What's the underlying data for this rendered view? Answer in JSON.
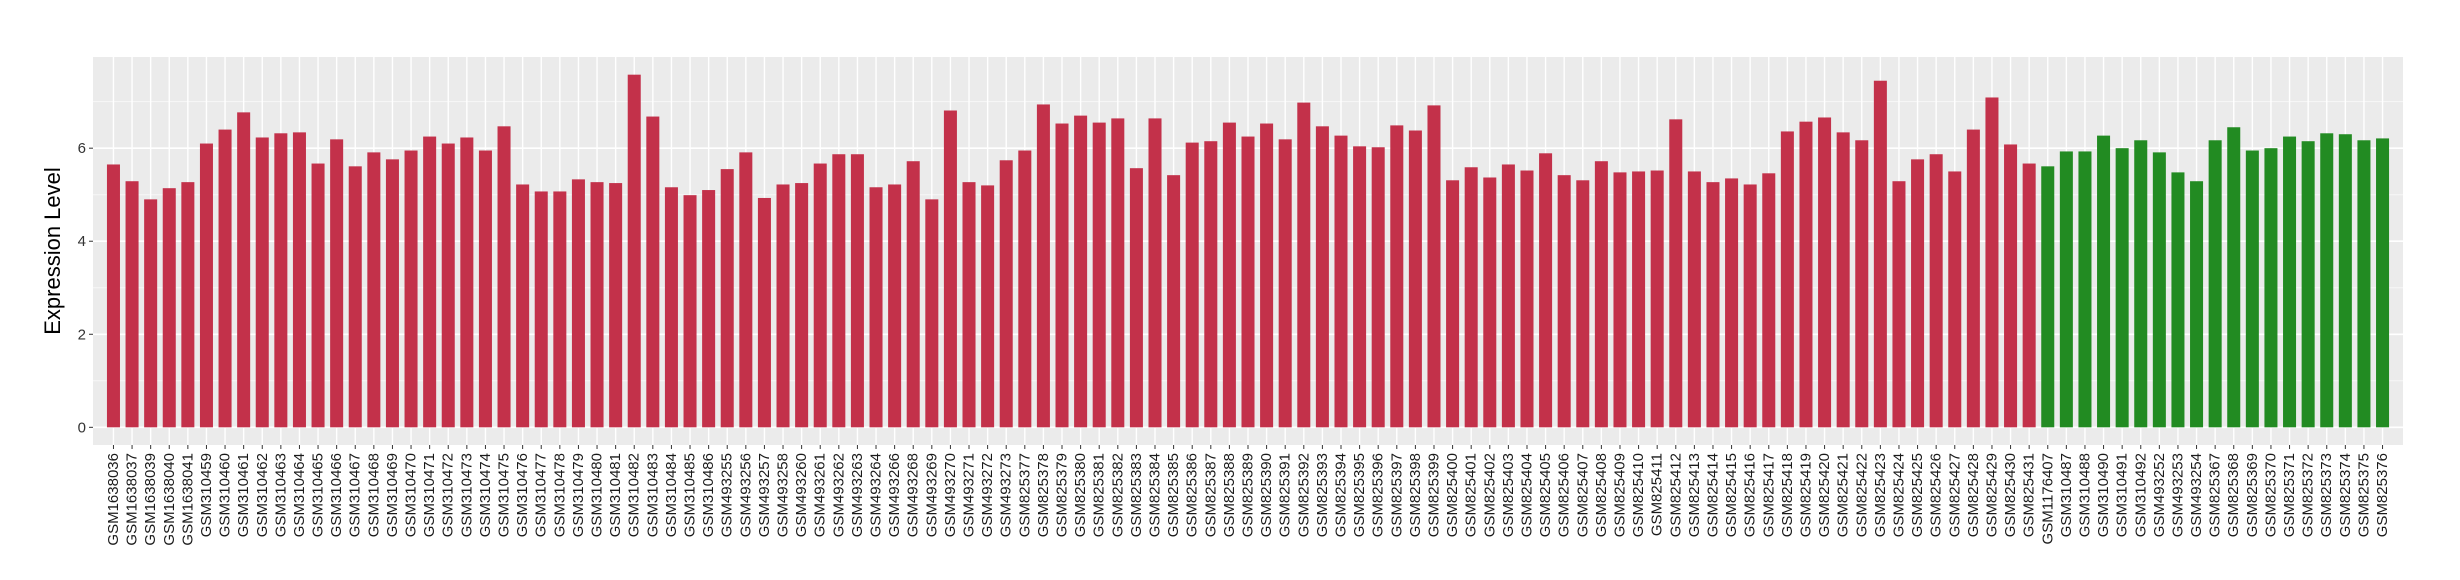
{
  "chart_data": {
    "type": "bar",
    "title": "",
    "xlabel": "",
    "ylabel": "Expression Level",
    "ylim": [
      -0.38,
      7.96
    ],
    "yticks": [
      0,
      2,
      4,
      6
    ],
    "grid": true,
    "panel_background": "#EBEBEB",
    "legend": "none",
    "series": [
      {
        "color": "#C3314A",
        "categories": [
          "GSM1638036",
          "GSM1638037",
          "GSM1638039",
          "GSM1638040",
          "GSM1638041",
          "GSM310459",
          "GSM310460",
          "GSM310461",
          "GSM310462",
          "GSM310463",
          "GSM310464",
          "GSM310465",
          "GSM310466",
          "GSM310467",
          "GSM310468",
          "GSM310469",
          "GSM310470",
          "GSM310471",
          "GSM310472",
          "GSM310473",
          "GSM310474",
          "GSM310475",
          "GSM310476",
          "GSM310477",
          "GSM310478",
          "GSM310479",
          "GSM310480",
          "GSM310481",
          "GSM310482",
          "GSM310483",
          "GSM310484",
          "GSM310485",
          "GSM310486",
          "GSM493255",
          "GSM493256",
          "GSM493257",
          "GSM493258",
          "GSM493260",
          "GSM493261",
          "GSM493262",
          "GSM493263",
          "GSM493264",
          "GSM493266",
          "GSM493268",
          "GSM493269",
          "GSM493270",
          "GSM493271",
          "GSM493272",
          "GSM493273",
          "GSM825377",
          "GSM825378",
          "GSM825379",
          "GSM825380",
          "GSM825381",
          "GSM825382",
          "GSM825383",
          "GSM825384",
          "GSM825385",
          "GSM825386",
          "GSM825387",
          "GSM825388",
          "GSM825389",
          "GSM825390",
          "GSM825391",
          "GSM825392",
          "GSM825393",
          "GSM825394",
          "GSM825395",
          "GSM825396",
          "GSM825397",
          "GSM825398",
          "GSM825399",
          "GSM825400",
          "GSM825401",
          "GSM825402",
          "GSM825403",
          "GSM825404",
          "GSM825405",
          "GSM825406",
          "GSM825407",
          "GSM825408",
          "GSM825409",
          "GSM825410",
          "GSM825411",
          "GSM825412",
          "GSM825413",
          "GSM825414",
          "GSM825415",
          "GSM825416",
          "GSM825417",
          "GSM825418",
          "GSM825419",
          "GSM825420",
          "GSM825421",
          "GSM825422",
          "GSM825423",
          "GSM825424",
          "GSM825425",
          "GSM825426",
          "GSM825427",
          "GSM825428",
          "GSM825429",
          "GSM825430",
          "GSM825431"
        ],
        "values": [
          5.65,
          5.29,
          4.9,
          5.14,
          5.27,
          6.1,
          6.4,
          6.77,
          6.23,
          6.32,
          6.34,
          5.67,
          6.19,
          5.61,
          5.91,
          5.76,
          5.95,
          6.25,
          6.1,
          6.23,
          5.95,
          6.47,
          5.22,
          5.07,
          5.07,
          5.33,
          5.27,
          5.25,
          7.58,
          6.68,
          5.16,
          4.99,
          5.1,
          5.55,
          5.91,
          4.93,
          5.22,
          5.25,
          5.67,
          5.87,
          5.87,
          5.16,
          5.22,
          5.72,
          4.9,
          6.81,
          5.27,
          5.2,
          5.74,
          5.95,
          6.94,
          6.53,
          6.7,
          6.55,
          6.64,
          5.57,
          6.64,
          5.42,
          6.12,
          6.15,
          6.55,
          6.25,
          6.53,
          6.19,
          6.98,
          6.47,
          6.27,
          6.04,
          6.02,
          6.49,
          6.38,
          6.92,
          5.31,
          5.59,
          5.37,
          5.65,
          5.52,
          5.89,
          5.42,
          5.31,
          5.72,
          5.48,
          5.5,
          5.52,
          6.62,
          5.5,
          5.27,
          5.35,
          5.22,
          5.46,
          6.36,
          6.57,
          6.66,
          6.34,
          6.17,
          7.45,
          5.29,
          5.76,
          5.87,
          5.5,
          6.4,
          7.09,
          6.08,
          5.67
        ]
      },
      {
        "color": "#228B22",
        "categories": [
          "GSM1176407",
          "GSM310487",
          "GSM310488",
          "GSM310490",
          "GSM310491",
          "GSM310492",
          "GSM493252",
          "GSM493253",
          "GSM493254",
          "GSM825367",
          "GSM825368",
          "GSM825369",
          "GSM825370",
          "GSM825371",
          "GSM825372",
          "GSM825373",
          "GSM825374",
          "GSM825375",
          "GSM825376"
        ],
        "values": [
          5.61,
          5.93,
          5.93,
          6.27,
          6.0,
          6.17,
          5.91,
          5.48,
          5.29,
          6.17,
          6.45,
          5.95,
          6.0,
          6.25,
          6.15,
          6.32,
          6.3,
          6.17,
          6.21
        ]
      }
    ]
  }
}
